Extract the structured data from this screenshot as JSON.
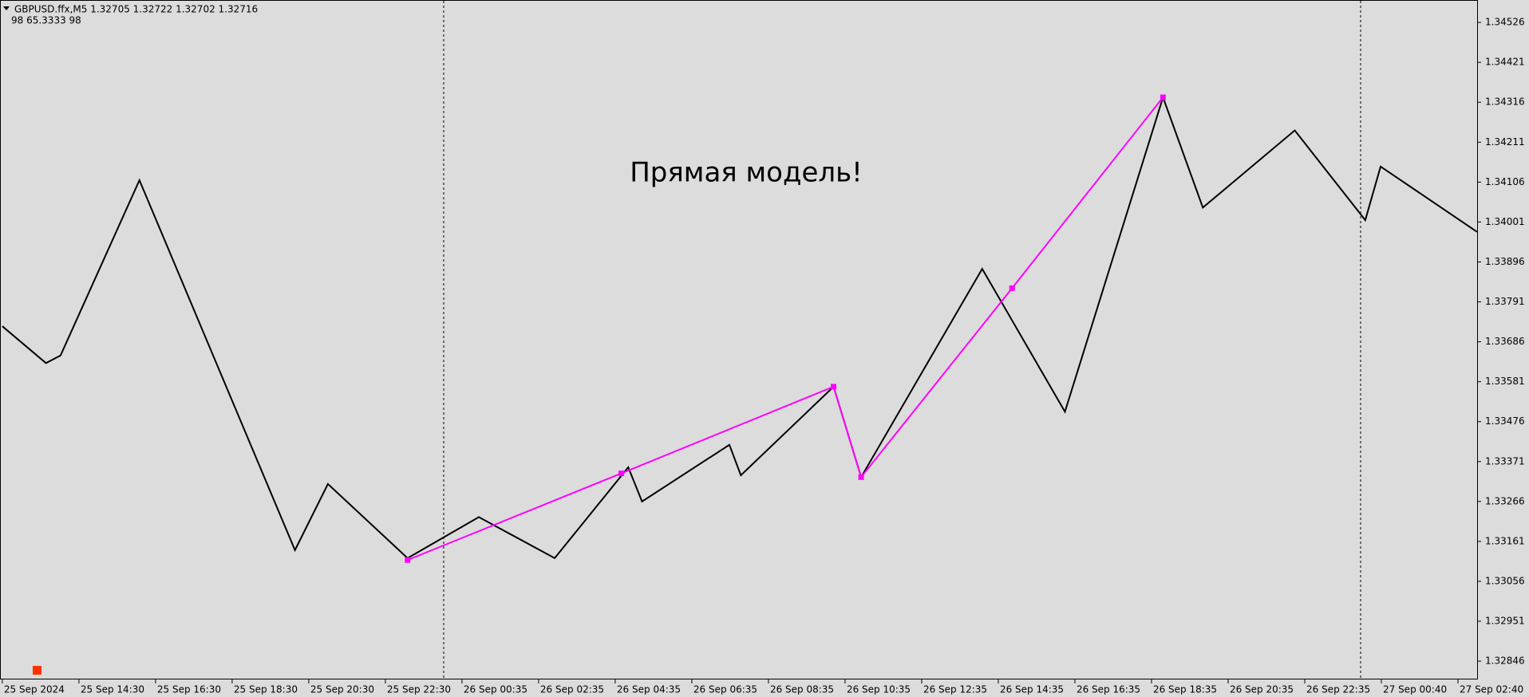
{
  "chart_data": {
    "type": "line",
    "header": "GBPUSD.ffx,M5  1.32705 1.32722 1.32702 1.32716",
    "subheader": "98  65.3333  98",
    "annotation": "Прямая модель!",
    "xlim": [
      -0.03,
      19.25
    ],
    "xticks": [
      {
        "value": 0,
        "label": "25 Sep 2024"
      },
      {
        "value": 1,
        "label": "25 Sep 14:30"
      },
      {
        "value": 2,
        "label": "25 Sep 16:30"
      },
      {
        "value": 3,
        "label": "25 Sep 18:30"
      },
      {
        "value": 4,
        "label": "25 Sep 20:30"
      },
      {
        "value": 5,
        "label": "25 Sep 22:30"
      },
      {
        "value": 6,
        "label": "26 Sep 00:35"
      },
      {
        "value": 7,
        "label": "26 Sep 02:35"
      },
      {
        "value": 8,
        "label": "26 Sep 04:35"
      },
      {
        "value": 9,
        "label": "26 Sep 06:35"
      },
      {
        "value": 10,
        "label": "26 Sep 08:35"
      },
      {
        "value": 11,
        "label": "26 Sep 10:35"
      },
      {
        "value": 12,
        "label": "26 Sep 12:35"
      },
      {
        "value": 13,
        "label": "26 Sep 14:35"
      },
      {
        "value": 14,
        "label": "26 Sep 16:35"
      },
      {
        "value": 15,
        "label": "26 Sep 18:35"
      },
      {
        "value": 16,
        "label": "26 Sep 20:35"
      },
      {
        "value": 17,
        "label": "26 Sep 22:35"
      },
      {
        "value": 18,
        "label": "27 Sep 00:40"
      },
      {
        "value": 19,
        "label": "27 Sep 02:40"
      }
    ],
    "ylim": [
      1.328,
      1.34585
    ],
    "yticks": [
      1.34526,
      1.34421,
      1.34316,
      1.34211,
      1.34106,
      1.34001,
      1.33896,
      1.33791,
      1.33686,
      1.33581,
      1.33476,
      1.33371,
      1.33266,
      1.33161,
      1.33056,
      1.32951,
      1.32846
    ],
    "series": [
      {
        "color": "#000000",
        "x": [
          0,
          0.57,
          0.76,
          1.79,
          3.82,
          4.25,
          5.29,
          6.22,
          7.21,
          8.17,
          8.35,
          9.49,
          9.64,
          10.85,
          11.21,
          12.79,
          13.87,
          15.15,
          15.67,
          16.87,
          17.79,
          17.99,
          19.25
        ],
        "values": [
          1.33727,
          1.3363,
          1.3365,
          1.34111,
          1.33138,
          1.33312,
          1.33117,
          1.33225,
          1.33117,
          1.33356,
          1.33266,
          1.33415,
          1.33335,
          1.33568,
          1.3333,
          1.33878,
          1.33502,
          1.34329,
          1.34039,
          1.34242,
          1.34006,
          1.34147,
          1.33975
        ]
      },
      {
        "color": "#ff00ff",
        "x": [
          5.29,
          8.08,
          10.85,
          11.21,
          13.18,
          15.15
        ],
        "values": [
          1.33112,
          1.3334,
          1.33568,
          1.3333,
          1.33827,
          1.34329
        ]
      }
    ]
  }
}
